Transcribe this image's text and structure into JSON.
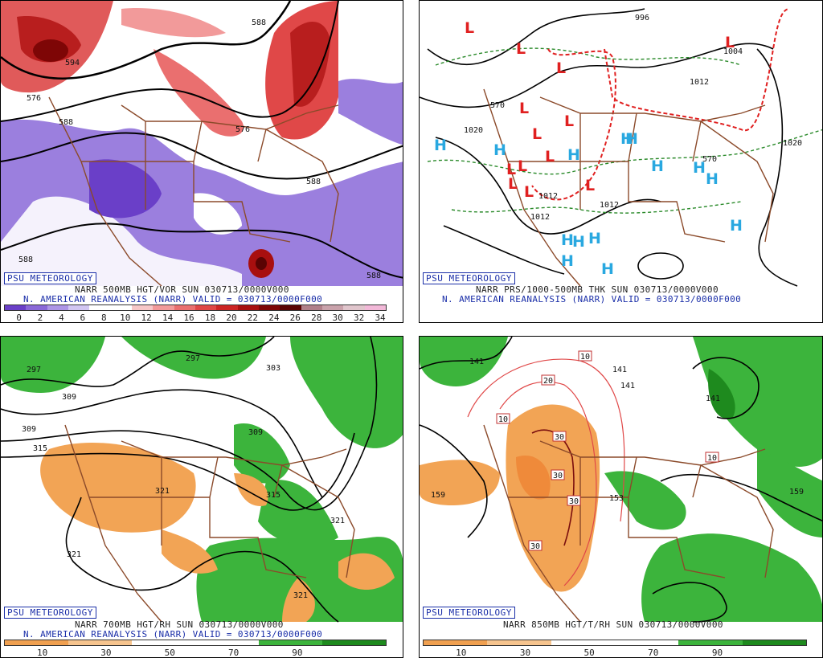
{
  "panels": [
    {
      "badge": "PSU METEOROLOGY",
      "line1": "NARR 500MB HGT/VOR SUN 030713/0000V000",
      "line2": "N. AMERICAN REANALYSIS (NARR) VALID = 030713/0000F000",
      "contour_labels": [
        "594",
        "576",
        "588",
        "576",
        "588",
        "588",
        "588",
        "588"
      ],
      "colorbar_ticks": [
        "0",
        "2",
        "4",
        "6",
        "8",
        "10",
        "12",
        "14",
        "16",
        "18",
        "20",
        "22",
        "24",
        "26",
        "28",
        "30",
        "32",
        "34"
      ],
      "colorbar_colors": [
        "#6a3fc8",
        "#8a68d8",
        "#ad95e6",
        "#d2c6f2",
        "#ffffff",
        "#ffffff",
        "#f7c7c7",
        "#f29a9a",
        "#ea6f6f",
        "#df4646",
        "#cc2424",
        "#a80f0f",
        "#7e0606",
        "#5a0303",
        "#b0808a",
        "#c9a2ab",
        "#e0c5cc",
        "#f2b8d8"
      ]
    },
    {
      "badge": "PSU METEOROLOGY",
      "line1": "NARR PRS/1000-500MB THK SUN 030713/0000V000",
      "line2": "N. AMERICAN REANALYSIS (NARR) VALID = 030713/0000F000",
      "contour_labels": [
        "996",
        "1004",
        "1012",
        "1020",
        "1012",
        "1012",
        "1012",
        "1020",
        "570",
        "570"
      ],
      "high_symbol": "H",
      "low_symbol": "L"
    },
    {
      "badge": "PSU METEOROLOGY",
      "line1": "NARR 700MB HGT/RH SUN 030713/0000V000",
      "line2": "N. AMERICAN REANALYSIS (NARR) VALID = 030713/0000F000",
      "contour_labels": [
        "297",
        "297",
        "303",
        "309",
        "309",
        "315",
        "321",
        "315",
        "321",
        "321",
        "321",
        "309"
      ],
      "colorbar_ticks": [
        "10",
        "30",
        "50",
        "70",
        "90"
      ],
      "colorbar_colors": [
        "#f0a050",
        "#f6c48e",
        "#ffffff",
        "#ffffff",
        "#3cb43c",
        "#1e8a1e"
      ]
    },
    {
      "badge": "PSU METEOROLOGY",
      "line1": "NARR 850MB HGT/T/RH SUN 030713/0000V000",
      "contour_labels": [
        "141",
        "141",
        "141",
        "141",
        "159",
        "159",
        "153"
      ],
      "temp_labels": [
        "10",
        "20",
        "10",
        "30",
        "30",
        "30",
        "30",
        "10"
      ],
      "colorbar_ticks": [
        "10",
        "30",
        "50",
        "70",
        "90"
      ],
      "colorbar_colors": [
        "#f0a050",
        "#f6c48e",
        "#ffffff",
        "#ffffff",
        "#3cb43c",
        "#1e8a1e"
      ]
    }
  ],
  "colors": {
    "vorticity_negative": "#8a68d8",
    "vorticity_positive": "#e04848",
    "rh_dry": "#f2a455",
    "rh_moist": "#3cb43c",
    "borders": "#8b4a2a",
    "high": "#29a8e0",
    "low": "#e02020",
    "thickness": "#2a8a2a",
    "thickness_warm": "#e02020"
  }
}
